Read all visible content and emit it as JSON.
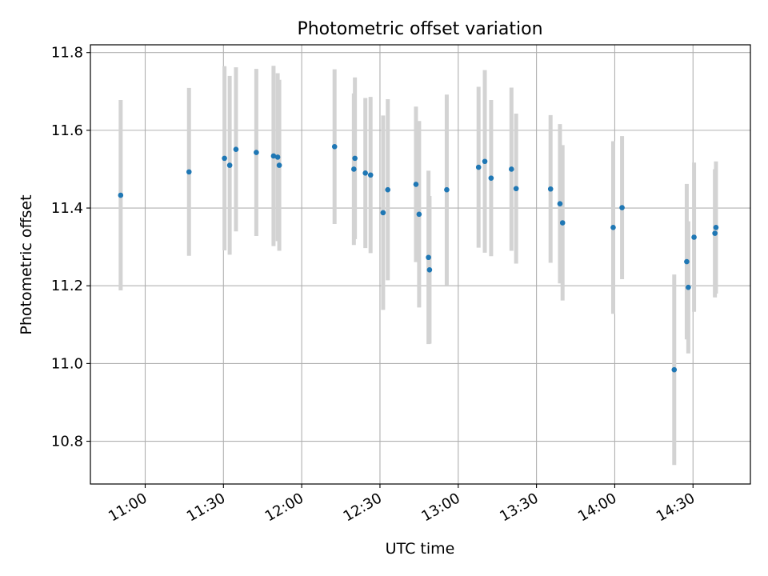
{
  "chart_data": {
    "type": "scatter",
    "title": "Photometric offset variation",
    "xlabel": "UTC time",
    "ylabel": "Photometric offset",
    "xlim": [
      "10:39",
      "14:52"
    ],
    "ylim": [
      10.69,
      11.82
    ],
    "x_ticks": [
      "11:00",
      "11:30",
      "12:00",
      "12:30",
      "13:00",
      "13:30",
      "14:00",
      "14:30"
    ],
    "y_ticks": [
      10.8,
      11.0,
      11.2,
      11.4,
      11.6,
      11.8
    ],
    "grid": true,
    "colors": {
      "point": "#1f77b4",
      "errorbar": "#d3d3d3",
      "grid": "#b0b0b0"
    },
    "points": [
      {
        "x": "10:50:36",
        "y": 11.433,
        "err": 0.245
      },
      {
        "x": "11:16:48",
        "y": 11.493,
        "err": 0.216
      },
      {
        "x": "11:30:24",
        "y": 11.528,
        "err": 0.237
      },
      {
        "x": "11:32:24",
        "y": 11.51,
        "err": 0.23
      },
      {
        "x": "11:34:48",
        "y": 11.551,
        "err": 0.211
      },
      {
        "x": "11:42:36",
        "y": 11.543,
        "err": 0.215
      },
      {
        "x": "11:49:12",
        "y": 11.534,
        "err": 0.232
      },
      {
        "x": "11:50:48",
        "y": 11.531,
        "err": 0.216
      },
      {
        "x": "11:51:24",
        "y": 11.51,
        "err": 0.22
      },
      {
        "x": "12:12:36",
        "y": 11.558,
        "err": 0.199
      },
      {
        "x": "12:20:00",
        "y": 11.5,
        "err": 0.195
      },
      {
        "x": "12:20:24",
        "y": 11.528,
        "err": 0.208
      },
      {
        "x": "12:24:24",
        "y": 11.49,
        "err": 0.193
      },
      {
        "x": "12:26:24",
        "y": 11.485,
        "err": 0.201
      },
      {
        "x": "12:31:12",
        "y": 11.388,
        "err": 0.25
      },
      {
        "x": "12:33:00",
        "y": 11.447,
        "err": 0.233
      },
      {
        "x": "12:43:48",
        "y": 11.461,
        "err": 0.2
      },
      {
        "x": "12:45:00",
        "y": 11.384,
        "err": 0.24
      },
      {
        "x": "12:48:36",
        "y": 11.273,
        "err": 0.223
      },
      {
        "x": "12:49:00",
        "y": 11.241,
        "err": 0.19
      },
      {
        "x": "12:55:36",
        "y": 11.447,
        "err": 0.245
      },
      {
        "x": "13:07:48",
        "y": 11.505,
        "err": 0.207
      },
      {
        "x": "13:10:12",
        "y": 11.52,
        "err": 0.235
      },
      {
        "x": "13:12:36",
        "y": 11.477,
        "err": 0.201
      },
      {
        "x": "13:20:24",
        "y": 11.5,
        "err": 0.21
      },
      {
        "x": "13:22:12",
        "y": 11.45,
        "err": 0.193
      },
      {
        "x": "13:35:24",
        "y": 11.449,
        "err": 0.19
      },
      {
        "x": "13:39:00",
        "y": 11.411,
        "err": 0.205
      },
      {
        "x": "13:40:00",
        "y": 11.362,
        "err": 0.2
      },
      {
        "x": "13:59:24",
        "y": 11.35,
        "err": 0.222
      },
      {
        "x": "14:02:48",
        "y": 11.401,
        "err": 0.184
      },
      {
        "x": "14:22:48",
        "y": 10.984,
        "err": 0.245
      },
      {
        "x": "14:27:36",
        "y": 11.262,
        "err": 0.2
      },
      {
        "x": "14:28:12",
        "y": 11.196,
        "err": 0.17
      },
      {
        "x": "14:30:24",
        "y": 11.325,
        "err": 0.192
      },
      {
        "x": "14:38:24",
        "y": 11.335,
        "err": 0.165
      },
      {
        "x": "14:38:48",
        "y": 11.35,
        "err": 0.17
      }
    ]
  }
}
